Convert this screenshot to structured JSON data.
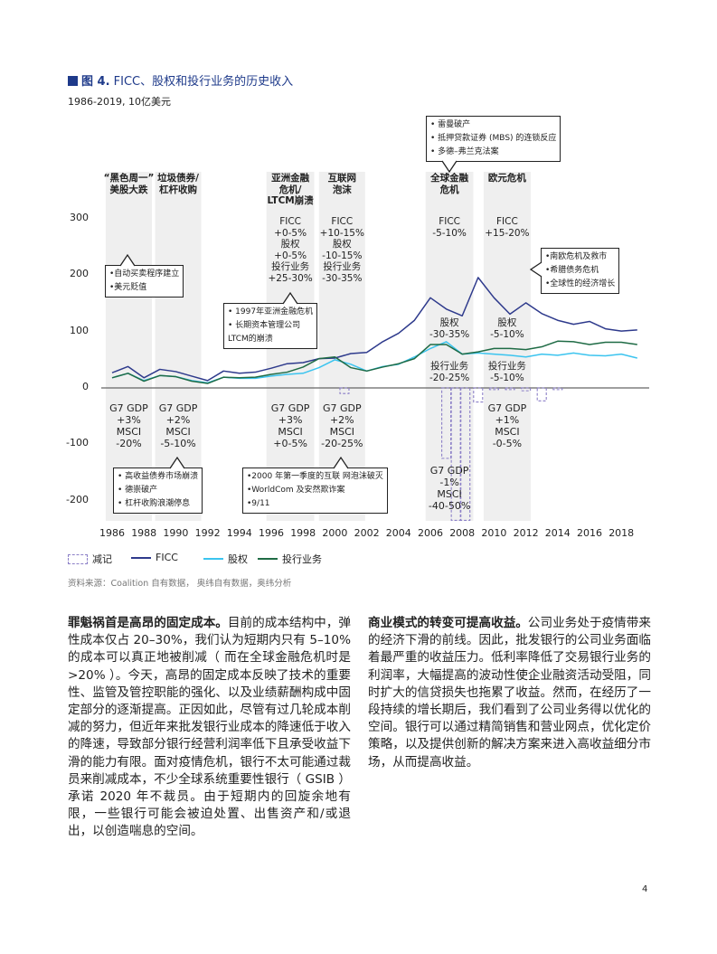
{
  "figure": {
    "title_prefix": "图 4.",
    "title": "FICC、股权和投行业务的历史收入",
    "subtitle": "1986-2019, 10亿美元"
  },
  "chart_data": {
    "type": "line",
    "title": "FICC、股权和投行业务的历史收入",
    "subtitle": "1986-2019, 10亿美元",
    "x": [
      1986,
      1987,
      1988,
      1989,
      1990,
      1991,
      1992,
      1993,
      1994,
      1995,
      1996,
      1997,
      1998,
      1999,
      2000,
      2001,
      2002,
      2003,
      2004,
      2005,
      2006,
      2007,
      2008,
      2009,
      2010,
      2011,
      2012,
      2013,
      2014,
      2015,
      2016,
      2017,
      2018,
      2019
    ],
    "series": [
      {
        "name": "FICC",
        "color": "#2e3a8c",
        "values": [
          27,
          38,
          18,
          33,
          29,
          21,
          13,
          30,
          26,
          28,
          35,
          43,
          45,
          52,
          53,
          61,
          63,
          82,
          97,
          120,
          160,
          140,
          128,
          196,
          160,
          131,
          151,
          132,
          120,
          113,
          118,
          105,
          101,
          103
        ]
      },
      {
        "name": "股权",
        "color": "#3bc4ef",
        "values": [
          18,
          26,
          13,
          22,
          20,
          13,
          9,
          19,
          17,
          17,
          21,
          24,
          26,
          36,
          50,
          42,
          30,
          38,
          42,
          55,
          70,
          82,
          60,
          62,
          60,
          58,
          55,
          60,
          58,
          62,
          58,
          57,
          60,
          53
        ]
      },
      {
        "name": "投行业务",
        "color": "#1f6b45",
        "values": [
          18,
          26,
          12,
          22,
          20,
          12,
          8,
          19,
          18,
          19,
          24,
          28,
          37,
          52,
          55,
          36,
          30,
          37,
          43,
          52,
          77,
          77,
          60,
          64,
          70,
          70,
          68,
          73,
          83,
          82,
          77,
          81,
          81,
          77
        ]
      }
    ],
    "writedowns": {
      "name": "减记",
      "color": "#8b7fc7",
      "bars": [
        {
          "year": 2000.6,
          "value": -10
        },
        {
          "year": 2007.0,
          "value": -125
        },
        {
          "year": 2007.6,
          "value": -235
        },
        {
          "year": 2008.2,
          "value": -235
        },
        {
          "year": 2009.0,
          "value": -25
        },
        {
          "year": 2010.0,
          "value": -3
        },
        {
          "year": 2011.0,
          "value": -3
        },
        {
          "year": 2012.0,
          "value": -5
        },
        {
          "year": 2013.0,
          "value": -23
        },
        {
          "year": 2014.0,
          "value": -3
        }
      ]
    },
    "ylim": [
      -230,
      330
    ],
    "yticks": [
      "300",
      "200",
      "100",
      "0",
      "-100",
      "-200"
    ],
    "ytick_values": [
      300,
      200,
      100,
      0,
      -100,
      -200
    ],
    "xticks": [
      "1986",
      "1988",
      "1990",
      "1992",
      "1994",
      "1996",
      "1998",
      "2000",
      "2002",
      "2004",
      "2006",
      "2008",
      "2010",
      "2012",
      "2014",
      "2016",
      "2018"
    ],
    "legend_position": "bottom",
    "grid": false,
    "crisis_periods": [
      {
        "start": 1985.6,
        "end": 1988.5,
        "title": "“黑色周一” 美股大跌",
        "title_lines": [
          "“黑色周一”",
          "美股大跌"
        ],
        "bottom_lines": [
          "G7 GDP",
          "+3%",
          "MSCI",
          "-20%"
        ]
      },
      {
        "start": 1988.7,
        "end": 1991.6,
        "title_lines": [
          "垃圾债券/",
          "杠杆收购"
        ],
        "bottom_lines": [
          "G7 GDP",
          "+2%",
          "MSCI",
          "-5-10%"
        ]
      },
      {
        "start": 1995.7,
        "end": 1998.7,
        "title_lines": [
          "亚洲金融",
          "危机/",
          "LTCM崩溃"
        ],
        "stat_lines": [
          "FICC",
          "+0-5%",
          "股权",
          "+0-5%",
          "投行业务",
          "+25-30%"
        ],
        "bottom_lines": [
          "G7 GDP",
          "+3%",
          "MSCI",
          "+0-5%"
        ]
      },
      {
        "start": 1999.0,
        "end": 2001.9,
        "title_lines": [
          "互联网",
          "泡沫"
        ],
        "stat_lines": [
          "FICC",
          "+10-15%",
          "股权",
          "-10-15%",
          "投行业务",
          "-30-35%"
        ],
        "bottom_lines": [
          "G7 GDP",
          "+2%",
          "MSCI",
          "-20-25%"
        ]
      },
      {
        "start": 2005.7,
        "end": 2008.7,
        "title_lines": [
          "全球金融",
          "危机"
        ],
        "stat_lines": [
          "FICC",
          "-5-10%"
        ],
        "mid_lines": [
          "股权",
          "-30-35%"
        ],
        "low_lines": [
          "投行业务",
          "-20-25%"
        ],
        "bottom_lines": [
          "G7 GDP",
          "-1%",
          "MSCI",
          "-40-50%"
        ]
      },
      {
        "start": 2009.35,
        "end": 2012.3,
        "title_lines": [
          "欧元危机"
        ],
        "stat_lines": [
          "FICC",
          "+15-20%"
        ],
        "mid_lines": [
          "股权",
          "-5-10%"
        ],
        "low_lines": [
          "投行业务",
          "-5-10%"
        ],
        "bottom_lines": [
          "G7 GDP",
          "+1%",
          "MSCI",
          "-0-5%"
        ]
      }
    ],
    "callouts": [
      {
        "lines": [
          "•自动买卖程序建立",
          "•美元贬值"
        ]
      },
      {
        "lines": [
          "• 1997年亚洲金融危机",
          "• 长期资本管理公司",
          "  LTCM的崩溃"
        ]
      },
      {
        "lines": [
          "• 雷曼破产",
          "• 抵押贷款证券 (MBS) 的连锁反应",
          "• 多德–弗兰克法案"
        ]
      },
      {
        "lines": [
          "•南欧危机及救市",
          "•希腊债务危机",
          "•全球性的经济增长"
        ]
      },
      {
        "lines": [
          "• 高收益债券市场崩溃",
          "• 德崇破产",
          "• 杠杆收购浪潮停息"
        ]
      },
      {
        "lines": [
          "•2000 年第一季度的互联  网泡沫破灭",
          "•WorldCom 及安然欺诈案",
          "•9/11"
        ]
      }
    ]
  },
  "legend": {
    "writedown": "减记",
    "ficc": "FICC",
    "equity": "股权",
    "ib": "投行业务"
  },
  "source": "资料来源：Coalition 自有数据， 奥纬自有数据，奥纬分析",
  "body": {
    "left_lead": "罪魁祸首是高昂的固定成本。",
    "left_text": "目前的成本结构中，弹性成本仅占 20–30%，我们认为短期内只有 5–10% 的成本可以真正地被削减（ 而在全球金融危机时是 >20% ）。今天，高昂的固定成本反映了技术的重要性、监管及管控职能的强化、以及业绩薪酬构成中固定部分的逐渐提高。正因如此，尽管有过几轮成本削减的努力，但近年来批发银行业成本的降速低于收入的降速，导致部分银行经营利润率低下且承受收益下滑的能力有限。面对疫情危机，银行不太可能通过裁员来削减成本，不少全球系统重要性银行（ GSIB ）承诺 2020 年不裁员。由于短期内的回旋余地有限，一些银行可能会被迫处置、出售资产和/或退出，以创造喘息的空间。",
    "right_lead": "商业模式的转变可提高收益。",
    "right_text": "公司业务处于疫情带来的经济下滑的前线。因此，批发银行的公司业务面临着最严重的收益压力。低利率降低了交易银行业务的利润率，大幅提高的波动性使企业融资活动受阻，同时扩大的信贷损失也拖累了收益。然而，在经历了一段持续的增长期后，我们看到了公司业务得以优化的空间。银行可以通过精简销售和营业网点，优化定价策略，以及提供创新的解决方案来进入高收益细分市场，从而提高收益。"
  },
  "page_number": "4"
}
